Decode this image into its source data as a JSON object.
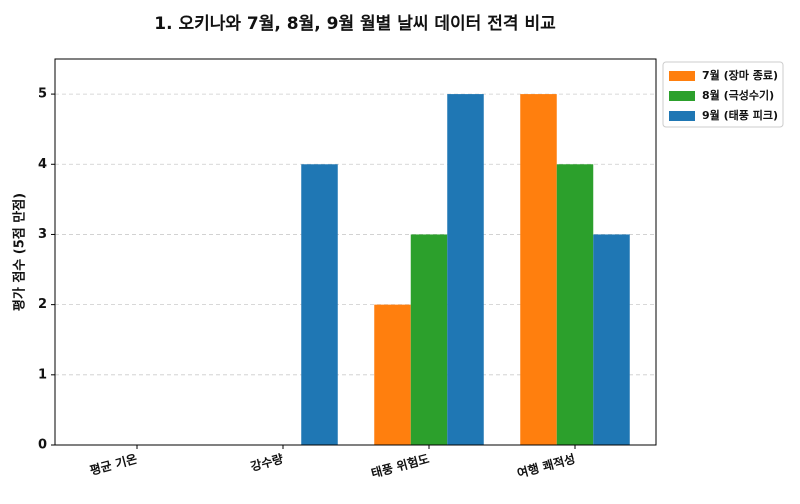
{
  "chart_data": {
    "type": "bar",
    "title": "1. 오키나와 7월, 8월, 9월 월별 날씨 데이터 전격 비교",
    "ylabel": "평가 점수 (5점 만점)",
    "categories": [
      "평균 기온",
      "강수량",
      "태풍 위험도",
      "여행 쾌적성"
    ],
    "series": [
      {
        "name": "7월 (장마 종료)",
        "color": "#ff7f0e",
        "values": [
          0,
          0,
          2,
          5
        ]
      },
      {
        "name": "8월 (극성수기)",
        "color": "#2ca02c",
        "values": [
          0,
          0,
          3,
          4
        ]
      },
      {
        "name": "9월 (태풍 피크)",
        "color": "#1f77b4",
        "values": [
          0,
          4,
          5,
          3
        ]
      }
    ],
    "ylim": [
      0,
      5.5
    ],
    "yticks": [
      0,
      1,
      2,
      3,
      4,
      5
    ],
    "grid": true,
    "legend": "outside-upper-right"
  }
}
